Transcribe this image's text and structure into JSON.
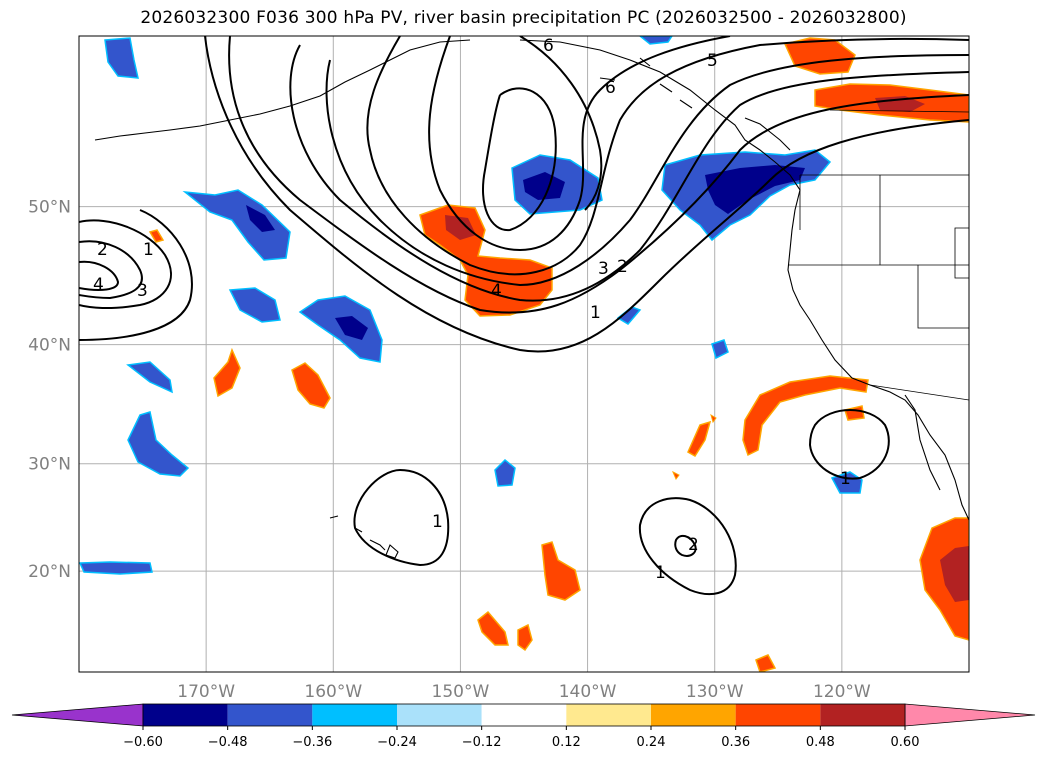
{
  "title": "2026032300 F036 300 hPa PV, river basin precipitation PC (2026032500 - 2026032800)",
  "map": {
    "extent": {
      "lon_min": -180,
      "lon_max": -110,
      "lat_min": 10,
      "lat_max": 60
    },
    "lat_ticks": [
      {
        "value": 20,
        "label": "20°N"
      },
      {
        "value": 30,
        "label": "30°N"
      },
      {
        "value": 40,
        "label": "40°N"
      },
      {
        "value": 50,
        "label": "50°N"
      }
    ],
    "lon_ticks": [
      {
        "value": -170,
        "label": "170°W"
      },
      {
        "value": -160,
        "label": "160°W"
      },
      {
        "value": -150,
        "label": "150°W"
      },
      {
        "value": -140,
        "label": "140°W"
      },
      {
        "value": -130,
        "label": "130°W"
      },
      {
        "value": -120,
        "label": "120°W"
      }
    ],
    "pv_contour_labels": [
      "6",
      "6",
      "5",
      "4",
      "3",
      "2",
      "1",
      "2",
      "1",
      "4",
      "3",
      "1",
      "1",
      "2",
      "1"
    ]
  },
  "colorbar": {
    "ticks": [
      "−0.60",
      "−0.48",
      "−0.36",
      "−0.24",
      "−0.12",
      "0.12",
      "0.24",
      "0.36",
      "0.48",
      "0.60"
    ],
    "colors": [
      "#9933cc",
      "#00008b",
      "#3355cc",
      "#00bfff",
      "#aae1fa",
      "#ffffff",
      "#ffe98f",
      "#ffa500",
      "#ff4500",
      "#b22222",
      "#ff88aa"
    ]
  },
  "chart_data": {
    "type": "map",
    "title": "2026032300 F036 300 hPa PV, river basin precipitation PC (2026032500 - 2026032800)",
    "contour_field": "300 hPa PV",
    "contour_levels": [
      1,
      2,
      3,
      4,
      5,
      6
    ],
    "shading_field": "river basin precipitation PC",
    "shading_levels": [
      -0.6,
      -0.48,
      -0.36,
      -0.24,
      -0.12,
      0.12,
      0.24,
      0.36,
      0.48,
      0.6
    ],
    "xlabel": "",
    "ylabel": ""
  }
}
